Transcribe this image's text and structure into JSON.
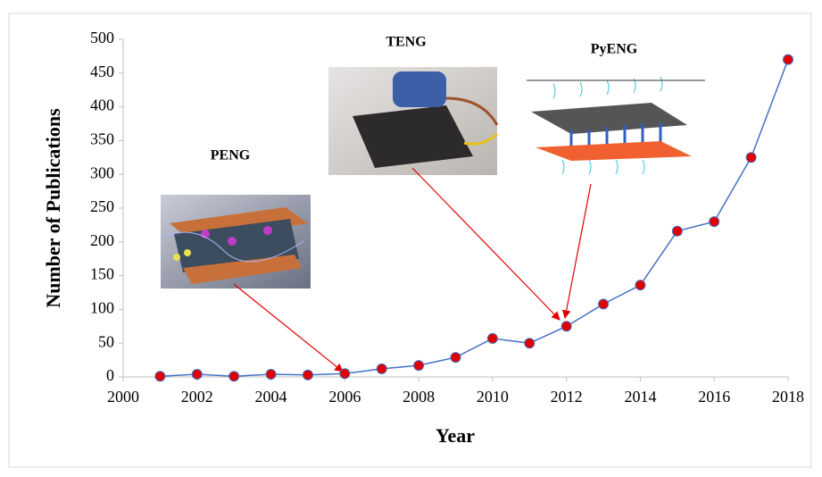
{
  "chart_data": {
    "type": "line",
    "xlabel": "Year",
    "ylabel": "Number of Publications",
    "annotations": [
      "PENG",
      "TENG",
      "PyENG"
    ],
    "x": [
      2001,
      2002,
      2003,
      2004,
      2005,
      2006,
      2007,
      2008,
      2009,
      2010,
      2011,
      2012,
      2013,
      2014,
      2015,
      2016,
      2017,
      2018
    ],
    "values": [
      1,
      4,
      1,
      4,
      3,
      5,
      12,
      17,
      29,
      57,
      50,
      75,
      108,
      136,
      216,
      230,
      325,
      470
    ],
    "color": "#4472c4",
    "marker_color": "#e00000",
    "xlim": [
      2000,
      2018
    ],
    "xticks": [
      2000,
      2002,
      2004,
      2006,
      2008,
      2010,
      2012,
      2014,
      2016,
      2018
    ],
    "ylim": [
      0,
      500
    ],
    "yticks": [
      0,
      50,
      100,
      150,
      200,
      250,
      300,
      350,
      400,
      450,
      500
    ]
  }
}
